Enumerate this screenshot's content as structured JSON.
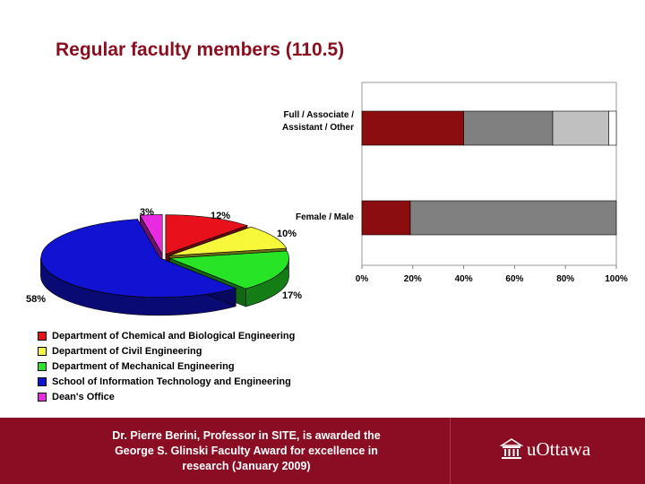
{
  "slide": {
    "title": "Regular faculty members (110.5)"
  },
  "chart_data": [
    {
      "type": "pie",
      "variant": "3d-exploded",
      "labels": [
        "Department of Chemical and Biological Engineering",
        "Department of Civil Engineering",
        "Department of Mechanical Engineering",
        "School of Information Technology and Engineering",
        "Dean's Office"
      ],
      "values": [
        12,
        10,
        17,
        58,
        3
      ],
      "value_labels": [
        "12%",
        "10%",
        "17%",
        "58%",
        "3%"
      ],
      "colors": [
        "#e8111b",
        "#f8f83a",
        "#27e427",
        "#1212d2",
        "#e82ae0"
      ],
      "legend": "bottom-left"
    },
    {
      "type": "bar",
      "orientation": "horizontal",
      "stacked": "percent",
      "categories": [
        "Full / Associate / Assistant / Other",
        "Female / Male"
      ],
      "category_lines": [
        [
          "Full / Associate /",
          "Assistant / Other"
        ],
        [
          "Female / Male"
        ]
      ],
      "series": [
        {
          "values": [
            40,
            19
          ],
          "color": "#8b0d10"
        },
        {
          "values": [
            35,
            81
          ],
          "color": "#808080"
        },
        {
          "values": [
            22,
            0
          ],
          "color": "#c0c0c0"
        },
        {
          "values": [
            3,
            0
          ],
          "color": "#ffffff"
        }
      ],
      "xlim": [
        0,
        100
      ],
      "ticks": [
        "0%",
        "20%",
        "40%",
        "60%",
        "80%",
        "100%"
      ],
      "grid": false
    }
  ],
  "footer": {
    "lines": [
      "Dr. Pierre Berini, Professor in SITE, is awarded the",
      "George S. Glinski Faculty Award for excellence in",
      "research (January 2009)"
    ],
    "logo_text": "uOttawa",
    "logo_icon": "building-icon",
    "bg_color": "#8b0d24"
  }
}
